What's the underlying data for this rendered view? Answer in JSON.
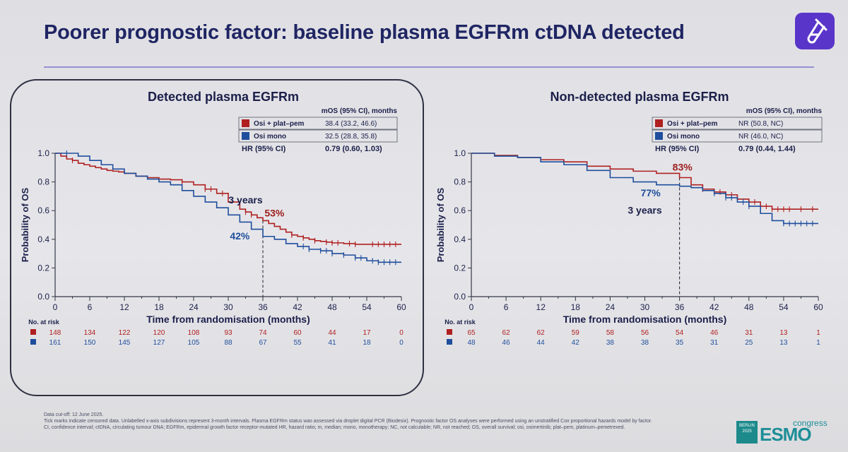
{
  "slide": {
    "title": "Poorer prognostic factor: baseline plasma EGFRm ctDNA detected",
    "footnote_lines": [
      "Data cut-off: 12 June 2025.",
      "Tick marks indicate censored data. Unlabelled x-axis subdivisions represent 3-month intervals. Plasma EGFRm status was assessed via droplet digital PCR (Biodesix). Prognostic factor OS analyses were performed using an unstratified Cox proportional hazards model by factor.",
      "CI, confidence interval; ctDNA, circulating tumour DNA; EGFRm, epidermal growth factor receptor-mutated HR, hazard ratio; m, median; mono, monotherapy; NC, not calculable; NR, not reached; OS, overall survival; osi, osimertinib; plat–pem, platinum–pemetrexed."
    ],
    "logo": {
      "city": "BERLIN",
      "year": "2025",
      "brand": "ESMO",
      "word": "congress"
    },
    "badge_icon": "test-tube-icon",
    "colors": {
      "title": "#1f2563",
      "osi_plat_pem": "#b02020",
      "osi_mono": "#1f4e9c",
      "badge": "#5a35c9",
      "esmo": "#1e8e97"
    }
  },
  "chart_data": [
    {
      "type": "line",
      "title": "Detected plasma EGFRm",
      "xlabel": "Time from randomisation (months)",
      "ylabel": "Probability of OS",
      "xlim": [
        0,
        60
      ],
      "ylim": [
        0,
        1.0
      ],
      "x_ticks": [
        0,
        6,
        12,
        18,
        24,
        30,
        36,
        42,
        48,
        54,
        60
      ],
      "y_ticks": [
        "0.0",
        "0.2",
        "0.4",
        "0.6",
        "0.8",
        "1.0"
      ],
      "legend_header": "mOS (95% CI), months",
      "hr_label": "HR (95% CI)",
      "hr_value": "0.79 (0.60, 1.03)",
      "series": [
        {
          "name": "Osi + plat–pem",
          "color": "#b02020",
          "mos": "38.4 (33.2, 46.6)",
          "x": [
            0,
            1,
            2,
            3,
            4,
            5,
            6,
            7,
            8,
            9,
            10,
            11,
            12,
            14,
            16,
            18,
            20,
            22,
            24,
            26,
            28,
            30,
            32,
            33,
            34,
            35,
            36,
            37,
            38,
            39,
            40,
            41,
            42,
            43,
            44,
            45,
            46,
            47,
            48,
            50,
            52,
            54,
            56,
            58,
            60
          ],
          "y": [
            1.0,
            0.98,
            0.96,
            0.95,
            0.93,
            0.92,
            0.91,
            0.9,
            0.89,
            0.88,
            0.875,
            0.87,
            0.86,
            0.84,
            0.83,
            0.82,
            0.815,
            0.8,
            0.78,
            0.75,
            0.72,
            0.66,
            0.61,
            0.59,
            0.57,
            0.55,
            0.53,
            0.51,
            0.49,
            0.47,
            0.45,
            0.43,
            0.42,
            0.41,
            0.4,
            0.39,
            0.385,
            0.38,
            0.375,
            0.37,
            0.365,
            0.365,
            0.365,
            0.365,
            0.365
          ],
          "censor_x": [
            3,
            22,
            26,
            27,
            29,
            33,
            34,
            41,
            43,
            45,
            47,
            48,
            49,
            51,
            52,
            55,
            56,
            57,
            58,
            59
          ]
        },
        {
          "name": "Osi mono",
          "color": "#1f4e9c",
          "mos": "32.5 (28.8, 35.8)",
          "x": [
            0,
            2,
            4,
            6,
            8,
            10,
            12,
            14,
            16,
            18,
            20,
            22,
            24,
            26,
            28,
            30,
            32,
            34,
            36,
            38,
            40,
            42,
            44,
            46,
            48,
            50,
            52,
            54,
            56,
            58,
            60
          ],
          "y": [
            1.0,
            1.0,
            0.98,
            0.95,
            0.92,
            0.89,
            0.86,
            0.84,
            0.82,
            0.8,
            0.78,
            0.74,
            0.7,
            0.66,
            0.62,
            0.57,
            0.52,
            0.47,
            0.42,
            0.4,
            0.37,
            0.35,
            0.33,
            0.32,
            0.3,
            0.29,
            0.27,
            0.25,
            0.24,
            0.24,
            0.24
          ],
          "censor_x": [
            2,
            43,
            44,
            46,
            47,
            48,
            50,
            52,
            53,
            55,
            56,
            57,
            58,
            59
          ]
        }
      ],
      "annotations": [
        {
          "text": "3 years",
          "x": 33,
          "y": 0.65,
          "color": "#1b1f4a"
        },
        {
          "text": "53%",
          "x": 38,
          "y": 0.56,
          "color": "#9c1d1d"
        },
        {
          "text": "42%",
          "x": 32,
          "y": 0.4,
          "color": "#1f4e9c"
        }
      ],
      "dashed_x": 36,
      "risk_table": {
        "header": "No. at risk",
        "rows": [
          {
            "color": "#b02020",
            "values": [
              148,
              134,
              122,
              120,
              108,
              93,
              74,
              60,
              44,
              17,
              0
            ]
          },
          {
            "color": "#1f4e9c",
            "values": [
              161,
              150,
              145,
              127,
              105,
              88,
              67,
              55,
              41,
              18,
              0
            ]
          }
        ]
      }
    },
    {
      "type": "line",
      "title": "Non-detected plasma EGFRm",
      "xlabel": "Time from randomisation (months)",
      "ylabel": "Probability of OS",
      "xlim": [
        0,
        60
      ],
      "ylim": [
        0,
        1.0
      ],
      "x_ticks": [
        0,
        6,
        12,
        18,
        24,
        30,
        36,
        42,
        48,
        54,
        60
      ],
      "y_ticks": [
        "0.0",
        "0.2",
        "0.4",
        "0.6",
        "0.8",
        "1.0"
      ],
      "legend_header": "mOS (95% CI), months",
      "hr_label": "HR (95% CI)",
      "hr_value": "0.79 (0.44, 1.44)",
      "series": [
        {
          "name": "Osi + plat–pem",
          "color": "#b02020",
          "mos": "NR (50.8, NC)",
          "x": [
            0,
            4,
            8,
            12,
            16,
            20,
            24,
            28,
            32,
            36,
            38,
            40,
            42,
            44,
            46,
            48,
            50,
            52,
            54,
            56,
            58,
            60
          ],
          "y": [
            1.0,
            0.985,
            0.97,
            0.955,
            0.94,
            0.91,
            0.89,
            0.875,
            0.86,
            0.83,
            0.78,
            0.75,
            0.73,
            0.71,
            0.68,
            0.66,
            0.63,
            0.61,
            0.61,
            0.61,
            0.61,
            0.61
          ],
          "censor_x": [
            40,
            42,
            43,
            45,
            46,
            48,
            49,
            51,
            52,
            53,
            54,
            55,
            57,
            59
          ]
        },
        {
          "name": "Osi mono",
          "color": "#1f4e9c",
          "mos": "NR (46.0, NC)",
          "x": [
            0,
            4,
            8,
            12,
            16,
            20,
            24,
            28,
            32,
            36,
            38,
            40,
            42,
            44,
            46,
            48,
            50,
            52,
            54,
            56,
            58,
            60
          ],
          "y": [
            1.0,
            0.98,
            0.97,
            0.94,
            0.92,
            0.88,
            0.83,
            0.8,
            0.78,
            0.77,
            0.76,
            0.74,
            0.72,
            0.69,
            0.66,
            0.63,
            0.58,
            0.53,
            0.51,
            0.51,
            0.51,
            0.51
          ],
          "censor_x": [
            42,
            44,
            45,
            47,
            48,
            54,
            55,
            56,
            57,
            58,
            59
          ]
        }
      ],
      "annotations": [
        {
          "text": "83%",
          "x": 36.5,
          "y": 0.88,
          "color": "#9c1d1d"
        },
        {
          "text": "77%",
          "x": 31,
          "y": 0.7,
          "color": "#1f4e9c"
        },
        {
          "text": "3 years",
          "x": 30,
          "y": 0.58,
          "color": "#1b1f4a"
        }
      ],
      "dashed_x": 36,
      "risk_table": {
        "header": "No. at risk",
        "rows": [
          {
            "color": "#b02020",
            "values": [
              65,
              62,
              62,
              59,
              58,
              56,
              54,
              46,
              31,
              13,
              1
            ]
          },
          {
            "color": "#1f4e9c",
            "values": [
              48,
              46,
              44,
              42,
              38,
              38,
              35,
              31,
              25,
              13,
              1
            ]
          }
        ]
      }
    }
  ]
}
